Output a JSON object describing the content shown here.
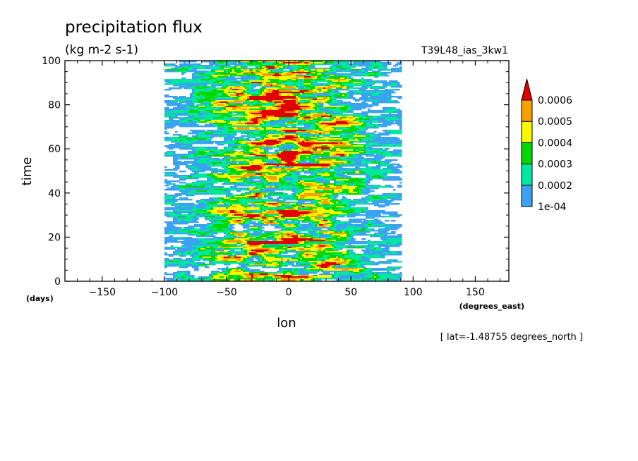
{
  "header": {
    "title": "precipitation flux",
    "units": "(kg m-2 s-1)",
    "experiment": "T39L48_ias_3kw1"
  },
  "footer": {
    "note": "[ lat=-1.48755 degrees_north ]"
  },
  "chart_data": {
    "type": "heatmap",
    "title": "precipitation flux",
    "subtitle": "(kg m-2 s-1)",
    "xlabel": "lon",
    "xunits": "(degrees_east)",
    "ylabel": "time",
    "yunits": "(days)",
    "xlim": [
      -180,
      177
    ],
    "ylim": [
      0,
      100
    ],
    "xticks": [
      -150,
      -100,
      -50,
      0,
      50,
      100,
      150
    ],
    "xtick_labels": [
      "−150",
      "−100",
      "−50",
      "0",
      "50",
      "100",
      "150"
    ],
    "yticks": [
      0,
      20,
      40,
      60,
      80,
      100
    ],
    "ytick_labels": [
      "0",
      "20",
      "40",
      "60",
      "80",
      "100"
    ],
    "grid": false,
    "legend": {
      "placement": "right",
      "type": "colorbar",
      "levels": [
        0.0001,
        0.0002,
        0.0003,
        0.0004,
        0.0005,
        0.0006
      ],
      "level_labels": [
        "1e-04",
        "0.0002",
        "0.0003",
        "0.0004",
        "0.0005",
        "0.0006"
      ],
      "colors": [
        "#3aa2f0",
        "#00e8a0",
        "#00d800",
        "#f8f800",
        "#f8a000",
        "#e00000"
      ],
      "extend": "max"
    },
    "description_values": {
      "active_longitude_band": [
        -100,
        90
      ],
      "max_value_band": [
        -60,
        60
      ],
      "max_level": 0.0006
    }
  }
}
